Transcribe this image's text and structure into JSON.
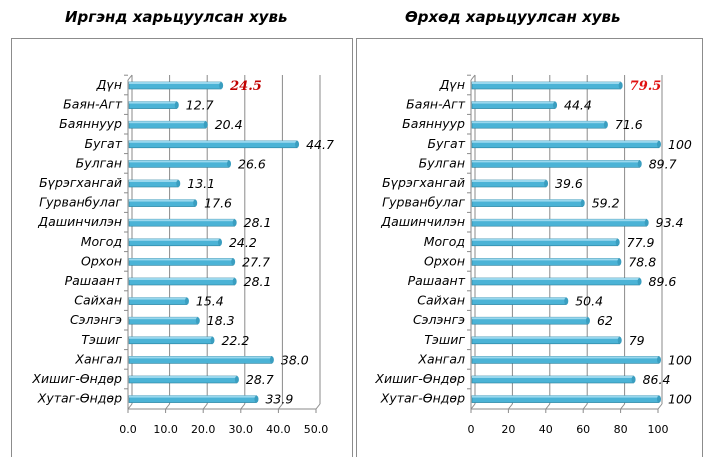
{
  "chart_data": [
    {
      "type": "bar",
      "orientation": "horizontal",
      "title": "Иргэнд харьцуулсан хувь",
      "categories": [
        "Дүн",
        "Баян-Агт",
        "Баяннуур",
        "Бугат",
        "Булган",
        "Бүрэгхангай",
        "Гурванбулаг",
        "Дашинчилэн",
        "Могод",
        "Орхон",
        "Рашаант",
        "Сайхан",
        "Сэлэнгэ",
        "Тэшиг",
        "Хангал",
        "Хишиг-Өндөр",
        "Хутаг-Өндөр"
      ],
      "values": [
        24.5,
        12.7,
        20.4,
        44.7,
        26.6,
        13.1,
        17.6,
        28.1,
        24.2,
        27.7,
        28.1,
        15.4,
        18.3,
        22.2,
        38.0,
        28.7,
        33.9
      ],
      "value_labels": [
        "24.5",
        "12.7",
        "20.4",
        "44.7",
        "26.6",
        "13.1",
        "17.6",
        "28.1",
        "24.2",
        "27.7",
        "28.1",
        "15.4",
        "18.3",
        "22.2",
        "38.0",
        "28.7",
        "33.9"
      ],
      "xlim": [
        0,
        50
      ],
      "ticks": [
        "0.0",
        "10.0",
        "20.0",
        "30.0",
        "40.0",
        "50.0"
      ],
      "tick_values": [
        0,
        10,
        20,
        30,
        40,
        50
      ],
      "highlight_color": "#c00000",
      "bar_color": "#4bb3d6",
      "grid": true
    },
    {
      "type": "bar",
      "orientation": "horizontal",
      "title": "Өрхөд харьцуулсан хувь",
      "categories": [
        "Дүн",
        "Баян-Агт",
        "Баяннуур",
        "Бугат",
        "Булган",
        "Бүрэгхангай",
        "Гурванбулаг",
        "Дашинчилэн",
        "Могод",
        "Орхон",
        "Рашаант",
        "Сайхан",
        "Сэлэнгэ",
        "Тэшиг",
        "Хангал",
        "Хишиг-Өндөр",
        "Хутаг-Өндөр"
      ],
      "values": [
        79.5,
        44.4,
        71.6,
        100,
        89.7,
        39.6,
        59.2,
        93.4,
        77.9,
        78.8,
        89.6,
        50.4,
        62,
        79,
        100,
        86.4,
        100
      ],
      "value_labels": [
        "79.5",
        "44.4",
        "71.6",
        "100",
        "89.7",
        "39.6",
        "59.2",
        "93.4",
        "77.9",
        "78.8",
        "89.6",
        "50.4",
        "62",
        "79",
        "100",
        "86.4",
        "100"
      ],
      "xlim": [
        0,
        100
      ],
      "ticks": [
        "0",
        "20",
        "40",
        "60",
        "80",
        "100"
      ],
      "tick_values": [
        0,
        20,
        40,
        60,
        80,
        100
      ],
      "highlight_color": "#e01010",
      "bar_color": "#4bb3d6",
      "grid": true
    }
  ]
}
